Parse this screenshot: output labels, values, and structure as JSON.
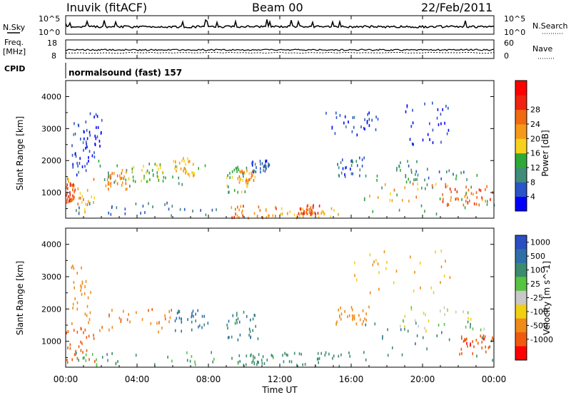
{
  "header": {
    "station": "Inuvik (fitACF)",
    "beam": "Beam 00",
    "date": "22/Feb/2011"
  },
  "strip": {
    "nsky_label": "N.Sky",
    "nsky_ticks": [
      "10^5",
      "10^0"
    ],
    "nsearch_label": "N.Search",
    "nsearch_ticks": [
      "10^5",
      "10^0"
    ],
    "freq_label": "Freq.",
    "freq_unit": "[MHz]",
    "freq_ticks": [
      "18",
      "8"
    ],
    "nave_label": "Nave",
    "nave_ticks": [
      "60",
      "0"
    ],
    "cpid_label": "CPID",
    "cpid_value": "normalsound (fast) 157"
  },
  "colors": {
    "power_scale": [
      "#0000ff",
      "#2a55c8",
      "#3f8c78",
      "#2fa838",
      "#f7d21c",
      "#f59a18",
      "#f06a10",
      "#ee2410",
      "#ff0000"
    ],
    "velocity_scale": [
      "#2b4fc0",
      "#2f6fa8",
      "#3b8b6e",
      "#56c440",
      "#c8c8c8",
      "#f0d010",
      "#f08a18",
      "#f05a10",
      "#ff0000"
    ]
  },
  "chart_data": [
    {
      "type": "heatmap",
      "title": "Power",
      "ylabel": "Slant Range [km]",
      "xlabel": "Time UT",
      "x_ticks": [
        "00:00",
        "04:00",
        "08:00",
        "12:00",
        "16:00",
        "20:00",
        "00:00"
      ],
      "x_range_hours": [
        0,
        24
      ],
      "y_ticks": [
        1000,
        2000,
        3000,
        4000
      ],
      "ylim": [
        200,
        4500
      ],
      "colorbar_label": "Power [dB]",
      "colorbar_ticks": [
        "4",
        "8",
        "12",
        "16",
        "20",
        "24",
        "28"
      ],
      "regions": [
        {
          "t0": 0.0,
          "t1": 1.6,
          "r0": 300,
          "r1": 1500,
          "p": 24
        },
        {
          "t0": 0.0,
          "t1": 0.5,
          "r0": 700,
          "r1": 1300,
          "p": 30
        },
        {
          "t0": 0.3,
          "t1": 1.2,
          "r0": 1500,
          "r1": 3300,
          "p": 8
        },
        {
          "t0": 1.0,
          "t1": 2.0,
          "r0": 1900,
          "r1": 3500,
          "p": 6
        },
        {
          "t0": 1.8,
          "t1": 8.0,
          "r0": 1200,
          "r1": 2000,
          "p": 14
        },
        {
          "t0": 2.2,
          "t1": 3.4,
          "r0": 1100,
          "r1": 1700,
          "p": 26
        },
        {
          "t0": 3.5,
          "t1": 5.6,
          "r0": 1300,
          "r1": 1900,
          "p": 18
        },
        {
          "t0": 6.0,
          "t1": 7.2,
          "r0": 1500,
          "r1": 2100,
          "p": 22
        },
        {
          "t0": 0.5,
          "t1": 8.5,
          "r0": 250,
          "r1": 700,
          "p": 10
        },
        {
          "t0": 9.0,
          "t1": 10.2,
          "r0": 1000,
          "r1": 1800,
          "p": 16
        },
        {
          "t0": 9.6,
          "t1": 10.6,
          "r0": 1300,
          "r1": 1700,
          "p": 25
        },
        {
          "t0": 10.4,
          "t1": 11.4,
          "r0": 1600,
          "r1": 2000,
          "p": 8
        },
        {
          "t0": 9.2,
          "t1": 11.8,
          "r0": 200,
          "r1": 600,
          "p": 27
        },
        {
          "t0": 12.0,
          "t1": 15.5,
          "r0": 200,
          "r1": 500,
          "p": 22
        },
        {
          "t0": 13.0,
          "t1": 14.2,
          "r0": 300,
          "r1": 600,
          "p": 30
        },
        {
          "t0": 15.2,
          "t1": 16.8,
          "r0": 1500,
          "r1": 2100,
          "p": 9
        },
        {
          "t0": 16.5,
          "t1": 24.0,
          "r0": 300,
          "r1": 1700,
          "p": 14
        },
        {
          "t0": 17.0,
          "t1": 24.0,
          "r0": 700,
          "r1": 1300,
          "p": 24
        },
        {
          "t0": 21.0,
          "t1": 23.8,
          "r0": 600,
          "r1": 1200,
          "p": 30
        },
        {
          "t0": 18.5,
          "t1": 22.5,
          "r0": 1400,
          "r1": 2000,
          "p": 12
        },
        {
          "t0": 14.5,
          "t1": 17.5,
          "r0": 2800,
          "r1": 3500,
          "p": 7
        },
        {
          "t0": 19.0,
          "t1": 21.5,
          "r0": 2500,
          "r1": 3800,
          "p": 6
        }
      ]
    },
    {
      "type": "heatmap",
      "title": "Velocity",
      "ylabel": "Slant Range [km]",
      "xlabel": "Time UT",
      "x_ticks": [
        "00:00",
        "04:00",
        "08:00",
        "12:00",
        "16:00",
        "20:00",
        "00:00"
      ],
      "x_range_hours": [
        0,
        24
      ],
      "y_ticks": [
        1000,
        2000,
        3000,
        4000
      ],
      "ylim": [
        200,
        4500
      ],
      "colorbar_label": "Velocity [m s^-1]",
      "colorbar_ticks": [
        "1000",
        "500",
        "100",
        "25",
        "-25",
        "-100",
        "-500",
        "-1000"
      ],
      "regions": [
        {
          "t0": 0.0,
          "t1": 1.6,
          "r0": 200,
          "r1": 1400,
          "v": -450
        },
        {
          "t0": 0.3,
          "t1": 1.4,
          "r0": 1400,
          "r1": 3400,
          "v": -200
        },
        {
          "t0": 1.8,
          "t1": 6.0,
          "r0": 1200,
          "r1": 2000,
          "v": -250
        },
        {
          "t0": 6.0,
          "t1": 8.0,
          "r0": 1300,
          "r1": 2000,
          "v": 400
        },
        {
          "t0": 0.5,
          "t1": 8.5,
          "r0": 250,
          "r1": 700,
          "v": 60
        },
        {
          "t0": 9.0,
          "t1": 10.8,
          "r0": 1000,
          "r1": 1900,
          "v": 300
        },
        {
          "t0": 9.2,
          "t1": 12.0,
          "r0": 250,
          "r1": 600,
          "v": 80
        },
        {
          "t0": 12.0,
          "t1": 16.0,
          "r0": 200,
          "r1": 700,
          "v": 120
        },
        {
          "t0": 15.0,
          "t1": 17.0,
          "r0": 1500,
          "r1": 2100,
          "v": -150
        },
        {
          "t0": 16.5,
          "t1": 24.0,
          "r0": 400,
          "r1": 1600,
          "v": 250
        },
        {
          "t0": 22.0,
          "t1": 24.0,
          "r0": 600,
          "r1": 1200,
          "v": -600
        },
        {
          "t0": 18.5,
          "t1": 23.5,
          "r0": 1300,
          "r1": 2100,
          "v": 0
        },
        {
          "t0": 16.0,
          "t1": 22.0,
          "r0": 2500,
          "r1": 3800,
          "v": -60
        }
      ]
    }
  ]
}
